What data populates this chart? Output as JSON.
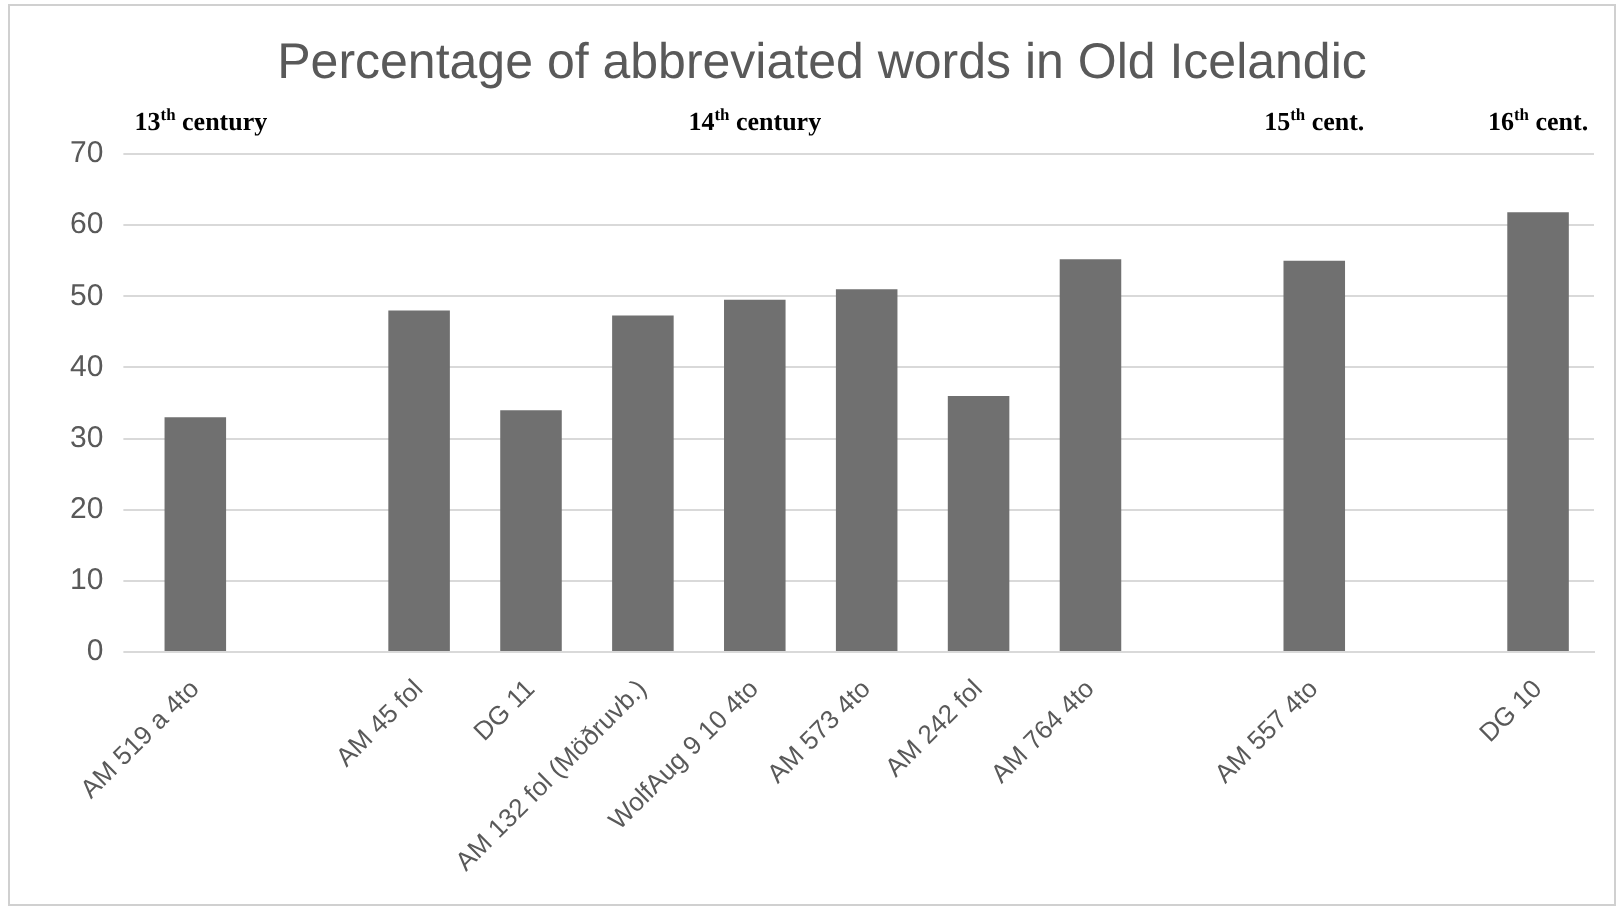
{
  "chart_data": {
    "type": "bar",
    "title": "Percentage of abbreviated words in Old Icelandic",
    "categories": [
      "AM 519 a 4to",
      null,
      "AM 45 fol",
      "DG 11",
      "AM 132 fol (Möðruvb.)",
      "WolfAug 9 10 4to",
      "AM 573 4to",
      "AM 242 fol",
      "AM 764 4to",
      null,
      "AM 557 4to",
      null,
      "DG 10"
    ],
    "values": [
      33,
      null,
      48,
      34,
      47.3,
      49.5,
      51,
      36,
      55.2,
      null,
      55,
      null,
      61.8
    ],
    "color": "#707070",
    "ylim": [
      0,
      70
    ],
    "yticks": [
      0,
      10,
      20,
      30,
      40,
      50,
      60,
      70
    ],
    "grid": "y",
    "legend": false,
    "annotations": [
      "13$^{th}$ century",
      "14$^{th}$ century",
      "15$^{th}$ cent.",
      "16$^{th}$ cent."
    ]
  }
}
